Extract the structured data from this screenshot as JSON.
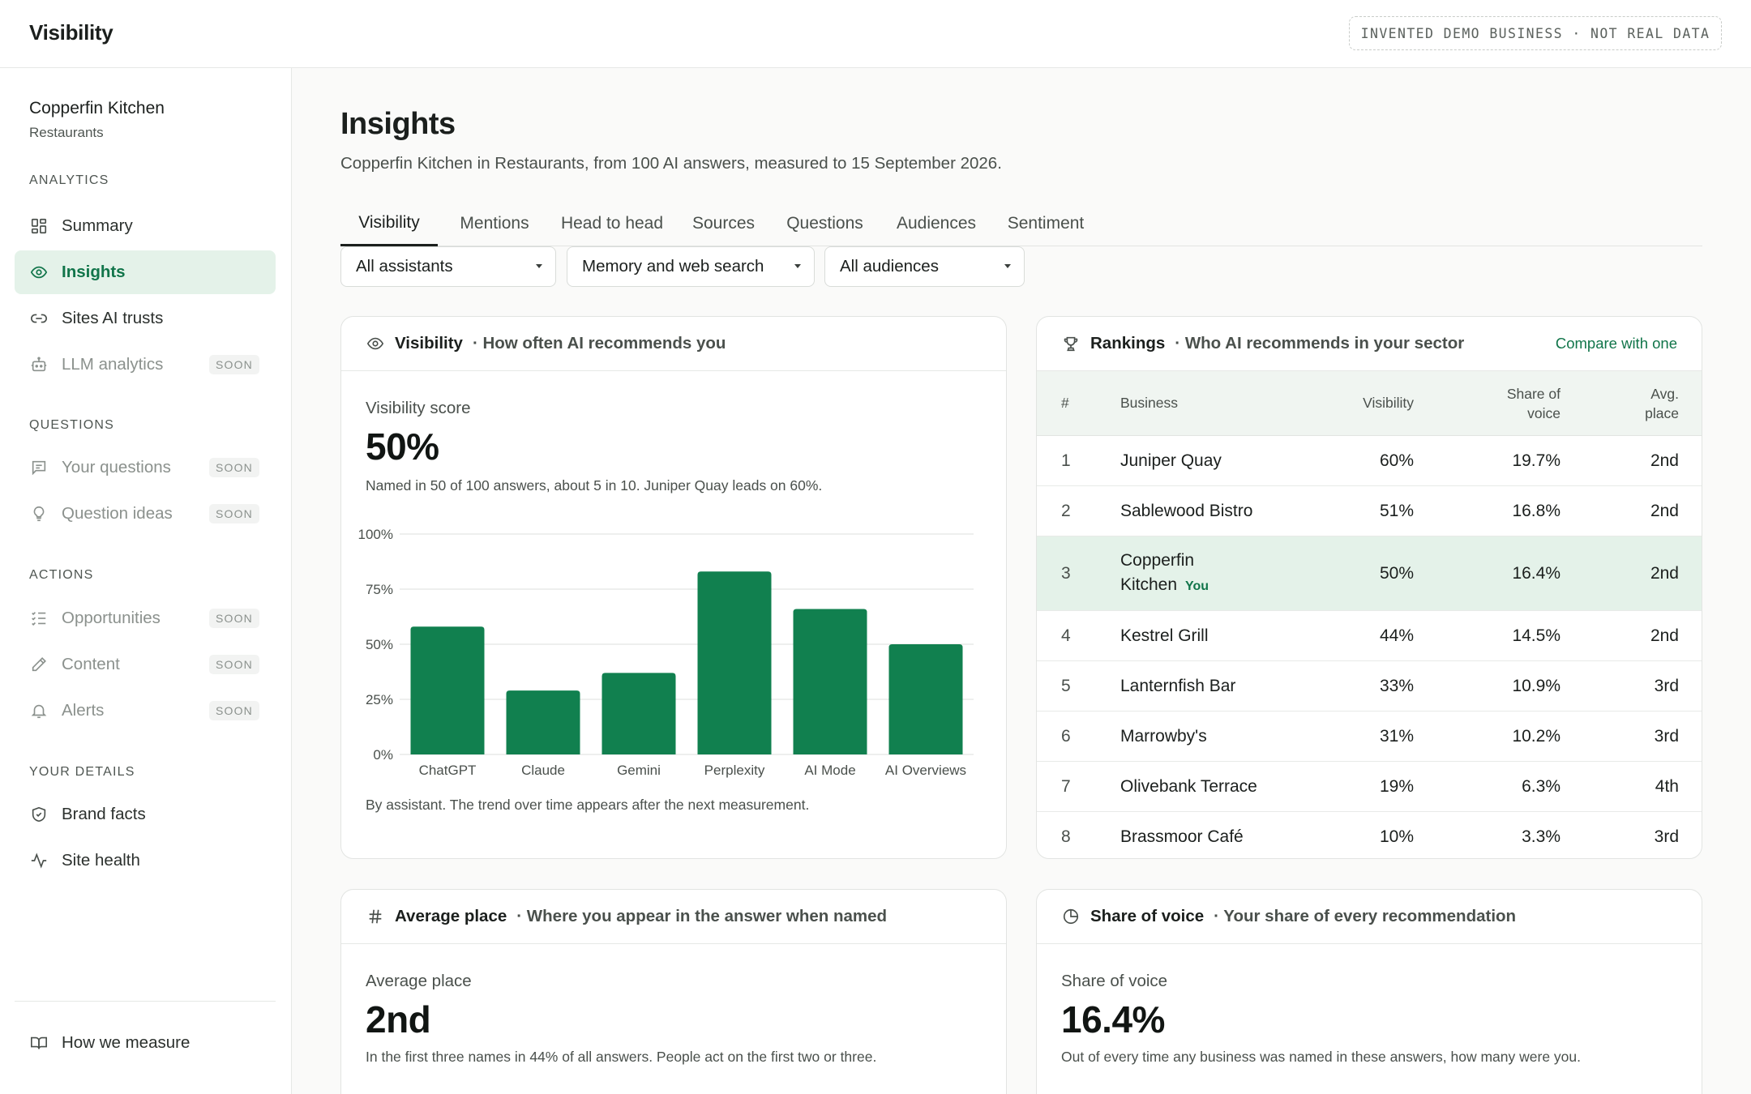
{
  "app": {
    "title": "Visibility",
    "demo_badge": "INVENTED DEMO BUSINESS · NOT REAL DATA"
  },
  "sidebar": {
    "business_name": "Copperfin Kitchen",
    "business_sector": "Restaurants",
    "sections": {
      "analytics": "ANALYTICS",
      "questions": "QUESTIONS",
      "actions": "ACTIONS",
      "your_details": "YOUR DETAILS"
    },
    "items": {
      "summary": {
        "label": "Summary",
        "icon": "dashboard-grid-icon"
      },
      "insights": {
        "label": "Insights",
        "icon": "eye-icon"
      },
      "sites_ai_trusts": {
        "label": "Sites AI trusts",
        "icon": "link-icon"
      },
      "llm_analytics": {
        "label": "LLM analytics",
        "icon": "robot-icon",
        "badge": "SOON"
      },
      "your_questions": {
        "label": "Your questions",
        "icon": "message-square-icon",
        "badge": "SOON"
      },
      "question_ideas": {
        "label": "Question ideas",
        "icon": "lightbulb-icon",
        "badge": "SOON"
      },
      "opportunities": {
        "label": "Opportunities",
        "icon": "checklist-icon",
        "badge": "SOON"
      },
      "content": {
        "label": "Content",
        "icon": "pencil-icon",
        "badge": "SOON"
      },
      "alerts": {
        "label": "Alerts",
        "icon": "bell-icon",
        "badge": "SOON"
      },
      "brand_facts": {
        "label": "Brand facts",
        "icon": "shield-check-icon"
      },
      "site_health": {
        "label": "Site health",
        "icon": "activity-pulse-icon"
      },
      "how_we_measure": {
        "label": "How we measure",
        "icon": "open-book-icon"
      }
    }
  },
  "page": {
    "title": "Insights",
    "subtitle": "Copperfin Kitchen in Restaurants, from 100 AI answers, measured to 15 September 2026."
  },
  "tabs": [
    "Visibility",
    "Mentions",
    "Head to head",
    "Sources",
    "Questions",
    "Audiences",
    "Sentiment"
  ],
  "filters": {
    "assistant": "All assistants",
    "search_mode": "Memory and web search",
    "audience": "All audiences"
  },
  "visibility_card": {
    "title": "Visibility",
    "subtitle": "How often AI recommends you",
    "metric_label": "Visibility score",
    "metric_value": "50%",
    "metric_note": "Named in 50 of 100 answers, about 5 in 10. Juniper Quay leads on 60%.",
    "caption": "By assistant. The trend over time appears after the next measurement."
  },
  "chart_data": {
    "type": "bar",
    "categories": [
      "ChatGPT",
      "Claude",
      "Gemini",
      "Perplexity",
      "AI Mode",
      "AI Overviews"
    ],
    "values": [
      58,
      29,
      37,
      83,
      66,
      50
    ],
    "ylim": [
      0,
      100
    ],
    "yticks": [
      "0%",
      "25%",
      "50%",
      "75%",
      "100%"
    ],
    "ytick_values": [
      0,
      25,
      50,
      75,
      100
    ],
    "grid": true,
    "bar_color": "#11804f"
  },
  "rankings_card": {
    "title": "Rankings",
    "subtitle": "Who AI recommends in your sector",
    "action": "Compare with one",
    "columns": {
      "num": "#",
      "business": "Business",
      "visibility": "Visibility",
      "share_of_voice": "Share of voice",
      "avg_place": "Avg. place"
    },
    "you_label": "You",
    "rows": [
      {
        "num": "1",
        "business": "Juniper Quay",
        "visibility": "60%",
        "share": "19.7%",
        "place": "2nd"
      },
      {
        "num": "2",
        "business": "Sablewood Bistro",
        "visibility": "51%",
        "share": "16.8%",
        "place": "2nd"
      },
      {
        "num": "3",
        "business": "Copperfin Kitchen",
        "visibility": "50%",
        "share": "16.4%",
        "place": "2nd",
        "you": true
      },
      {
        "num": "4",
        "business": "Kestrel Grill",
        "visibility": "44%",
        "share": "14.5%",
        "place": "2nd"
      },
      {
        "num": "5",
        "business": "Lanternfish Bar",
        "visibility": "33%",
        "share": "10.9%",
        "place": "3rd"
      },
      {
        "num": "6",
        "business": "Marrowby's",
        "visibility": "31%",
        "share": "10.2%",
        "place": "3rd"
      },
      {
        "num": "7",
        "business": "Olivebank Terrace",
        "visibility": "19%",
        "share": "6.3%",
        "place": "4th"
      },
      {
        "num": "8",
        "business": "Brassmoor Café",
        "visibility": "10%",
        "share": "3.3%",
        "place": "3rd"
      }
    ]
  },
  "average_place_card": {
    "title": "Average place",
    "subtitle": "Where you appear in the answer when named",
    "metric_label": "Average place",
    "metric_value": "2nd",
    "metric_note": "In the first three names in 44% of all answers. People act on the first two or three."
  },
  "share_of_voice_card": {
    "title": "Share of voice",
    "subtitle": "Your share of every recommendation",
    "metric_label": "Share of voice",
    "metric_value": "16.4%",
    "metric_note": "Out of every time any business was named in these answers, how many were you."
  },
  "colors": {
    "accent": "#11754a",
    "active_bg": "#e4f2e9",
    "bar": "#11804f"
  }
}
